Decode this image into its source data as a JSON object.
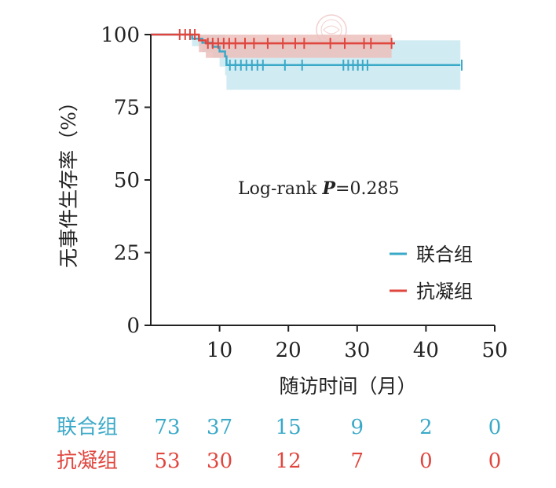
{
  "chart_data": {
    "type": "line",
    "subtype": "kaplan-meier",
    "ylabel": "无事件生存率（%）",
    "xlabel": "随访时间（月）",
    "xlim": [
      0,
      50
    ],
    "ylim": [
      0,
      100
    ],
    "xticks": [
      "10",
      "20",
      "30",
      "40",
      "50"
    ],
    "yticks": [
      "0",
      "25",
      "50",
      "75",
      "100"
    ],
    "annotation_text": "Log-rank ",
    "annotation_p": "P",
    "annotation_value": "=0.285",
    "legend_position": "right",
    "series": [
      {
        "name": "联合组",
        "color": "#3aa9c8",
        "ci_color": "#c9e8f0",
        "steps": [
          [
            0,
            100
          ],
          [
            6,
            98.6
          ],
          [
            7.5,
            97.2
          ],
          [
            9,
            95.8
          ],
          [
            10,
            94.2
          ],
          [
            10.8,
            92.5
          ],
          [
            11,
            89.5
          ],
          [
            45,
            89.5
          ]
        ],
        "ci": [
          [
            0,
            100,
            100
          ],
          [
            6,
            100,
            96
          ],
          [
            7.5,
            100,
            94
          ],
          [
            9,
            100,
            92
          ],
          [
            10,
            100,
            89
          ],
          [
            10.8,
            99,
            86
          ],
          [
            11,
            98,
            81
          ],
          [
            45,
            98,
            81
          ]
        ],
        "censored": [
          11.5,
          12.3,
          13.1,
          13.9,
          14.7,
          15.5,
          16.3,
          19.5,
          22,
          28,
          28.7,
          29.4,
          30.1,
          30.8,
          31.5,
          45.2
        ]
      },
      {
        "name": "抗凝组",
        "color": "#e0463e",
        "ci_color": "#ecc0bc",
        "steps": [
          [
            0,
            100
          ],
          [
            7,
            98
          ],
          [
            8,
            97
          ],
          [
            35.5,
            97
          ]
        ],
        "ci": [
          [
            0,
            100,
            100
          ],
          [
            7,
            100,
            94
          ],
          [
            8,
            100,
            92
          ],
          [
            35,
            100,
            92
          ]
        ],
        "censored": [
          4.2,
          5,
          5.7,
          6.4,
          8.3,
          9,
          9.8,
          10.6,
          11.4,
          12.3,
          13.7,
          15,
          17,
          19.2,
          21,
          22.3,
          26.1,
          28.2,
          31,
          32,
          35
        ]
      }
    ],
    "risk_table": {
      "times": [
        0,
        10,
        20,
        30,
        40,
        50
      ],
      "rows": [
        {
          "name": "联合组",
          "color": "#3aa9c8",
          "values": [
            "73",
            "37",
            "15",
            "9",
            "2",
            "0"
          ]
        },
        {
          "name": "抗凝组",
          "color": "#e0463e",
          "values": [
            "53",
            "30",
            "12",
            "7",
            "0",
            "0"
          ]
        }
      ]
    }
  }
}
